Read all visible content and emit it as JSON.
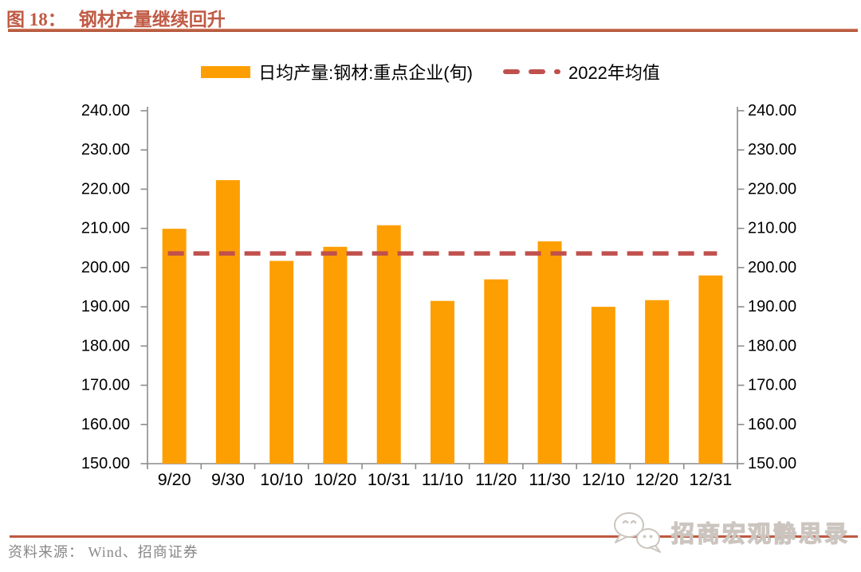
{
  "header": {
    "figure_label": "图 18：",
    "figure_title": "钢材产量继续回升",
    "accent_color": "#c05b45"
  },
  "legend": {
    "bar_item": {
      "label": "日均产量:钢材:重点企业(旬)",
      "color": "#FD9F02"
    },
    "line_item": {
      "label": "2022年均值",
      "color": "#C0504D"
    }
  },
  "chart_data": {
    "type": "bar",
    "title": "钢材产量继续回升",
    "categories": [
      "9/20",
      "9/30",
      "10/10",
      "10/20",
      "10/31",
      "11/10",
      "11/20",
      "11/30",
      "12/10",
      "12/20",
      "12/31"
    ],
    "series": [
      {
        "name": "日均产量:钢材:重点企业(旬)",
        "type": "bar",
        "color": "#FD9F02",
        "values": [
          209.9,
          222.3,
          201.7,
          205.3,
          210.8,
          191.5,
          197.0,
          206.7,
          190.0,
          191.7,
          198.0
        ]
      },
      {
        "name": "2022年均值",
        "type": "dashed_line",
        "color": "#C0504D",
        "value": 203.6
      }
    ],
    "xlabel": "",
    "ylabel": "",
    "ylim": [
      150,
      240
    ],
    "ytick_step": 10,
    "ytick_labels": [
      "150.00",
      "160.00",
      "170.00",
      "180.00",
      "190.00",
      "200.00",
      "210.00",
      "220.00",
      "230.00",
      "240.00"
    ],
    "y_axes": "left and right, mirrored",
    "grid": false,
    "legend_position": "top-center",
    "axis_color": "#8c8c8c"
  },
  "footer": {
    "source_text": "资料来源：  Wind、招商证券",
    "watermark_text": "招商宏观静思录",
    "watermark_icon": "wechat-icon",
    "rule_color": "#bd5a40"
  }
}
